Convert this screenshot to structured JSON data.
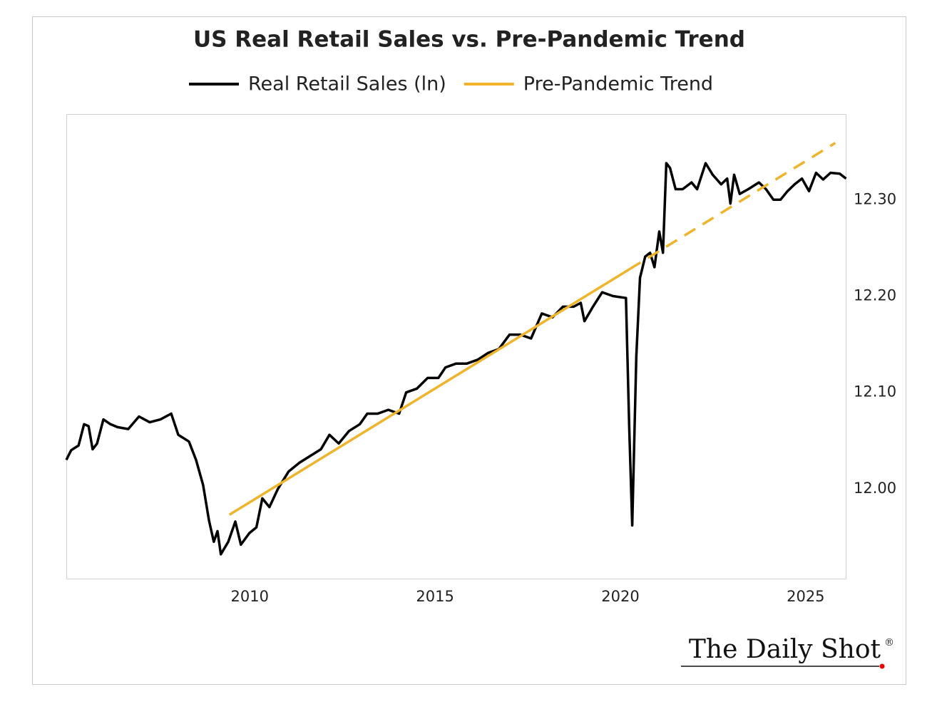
{
  "chart_data": {
    "type": "line",
    "title": "US Real Retail Sales vs. Pre-Pandemic Trend",
    "source": "The Daily Shot",
    "source_mark": "®",
    "series": [
      {
        "name": "Real Retail Sales (ln)",
        "color": "#000000",
        "x": [
          2005.05,
          2005.18,
          2005.38,
          2005.53,
          2005.65,
          2005.76,
          2005.88,
          2006.05,
          2006.24,
          2006.43,
          2006.72,
          2007.01,
          2007.3,
          2007.59,
          2007.88,
          2008.07,
          2008.36,
          2008.55,
          2008.74,
          2008.9,
          2009.03,
          2009.13,
          2009.22,
          2009.42,
          2009.61,
          2009.76,
          2009.99,
          2010.18,
          2010.34,
          2010.53,
          2010.76,
          2011.05,
          2011.34,
          2011.63,
          2011.92,
          2012.15,
          2012.4,
          2012.68,
          2012.97,
          2013.17,
          2013.45,
          2013.74,
          2014.03,
          2014.22,
          2014.51,
          2014.8,
          2015.09,
          2015.28,
          2015.57,
          2015.86,
          2016.15,
          2016.43,
          2016.72,
          2017.01,
          2017.3,
          2017.59,
          2017.88,
          2018.17,
          2018.45,
          2018.74,
          2018.93,
          2019.03,
          2019.26,
          2019.51,
          2019.8,
          2020.15,
          2020.24,
          2020.32,
          2020.43,
          2020.53,
          2020.67,
          2020.8,
          2020.92,
          2021.05,
          2021.15,
          2021.24,
          2021.34,
          2021.49,
          2021.68,
          2021.92,
          2022.07,
          2022.3,
          2022.49,
          2022.72,
          2022.88,
          2022.97,
          2023.07,
          2023.22,
          2023.45,
          2023.74,
          2023.93,
          2024.13,
          2024.32,
          2024.51,
          2024.7,
          2024.9,
          2025.09,
          2025.28,
          2025.47,
          2025.67,
          2025.92,
          2026.09
        ],
        "values": [
          12.03,
          12.04,
          12.045,
          12.067,
          12.065,
          12.041,
          12.047,
          12.072,
          12.067,
          12.064,
          12.062,
          12.075,
          12.069,
          12.072,
          12.078,
          12.056,
          12.049,
          12.03,
          12.004,
          11.967,
          11.945,
          11.956,
          11.932,
          11.945,
          11.966,
          11.942,
          11.954,
          11.96,
          11.99,
          11.981,
          12.0,
          12.018,
          12.027,
          12.034,
          12.041,
          12.056,
          12.047,
          12.06,
          12.067,
          12.078,
          12.078,
          12.082,
          12.078,
          12.1,
          12.104,
          12.115,
          12.115,
          12.126,
          12.13,
          12.13,
          12.134,
          12.141,
          12.145,
          12.16,
          12.16,
          12.156,
          12.182,
          12.178,
          12.189,
          12.189,
          12.193,
          12.174,
          12.189,
          12.204,
          12.2,
          12.198,
          12.063,
          11.962,
          12.137,
          12.219,
          12.241,
          12.245,
          12.23,
          12.267,
          12.245,
          12.338,
          12.333,
          12.311,
          12.311,
          12.318,
          12.311,
          12.338,
          12.326,
          12.316,
          12.322,
          12.296,
          12.326,
          12.306,
          12.311,
          12.318,
          12.311,
          12.3,
          12.3,
          12.309,
          12.316,
          12.322,
          12.309,
          12.328,
          12.321,
          12.328,
          12.327,
          12.322
        ]
      },
      {
        "name": "Pre-Pandemic Trend",
        "color": "#f0b429",
        "x": [
          2009.45,
          2020.25,
          2025.8
        ],
        "values": [
          11.973,
          12.228,
          12.359
        ],
        "segment_styles": [
          "solid",
          "dashed"
        ]
      }
    ],
    "xlim": [
      2005.05,
      2026.1
    ],
    "xticks": [
      2010,
      2015,
      2020,
      2025
    ],
    "ylim": [
      11.906,
      12.389
    ],
    "yticks": [
      {
        "value": 12.0,
        "label": "12.00"
      },
      {
        "value": 12.1,
        "label": "12.10"
      },
      {
        "value": 12.2,
        "label": "12.20"
      },
      {
        "value": 12.3,
        "label": "12.30"
      }
    ],
    "y_axis_side": "right",
    "grid": false
  }
}
